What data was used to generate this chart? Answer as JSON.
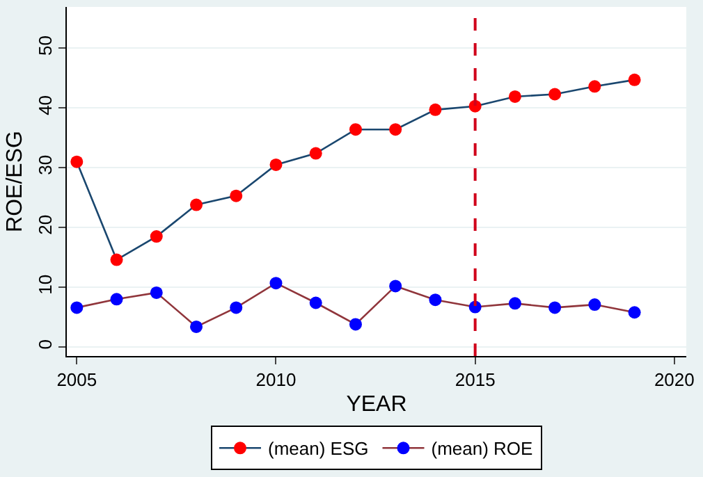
{
  "chart_data": {
    "type": "line",
    "xlabel": "YEAR",
    "ylabel": "ROE/ESG",
    "x": [
      2005,
      2006,
      2007,
      2008,
      2009,
      2010,
      2011,
      2012,
      2013,
      2014,
      2015,
      2016,
      2017,
      2018,
      2019
    ],
    "series": [
      {
        "name": "(mean) ESG",
        "color": "#1a476f",
        "colors": [
          "#ff0000",
          "#ff0000",
          "#ff0000",
          "#ff0000",
          "#ff0000",
          "#ff0000",
          "#ff0000",
          "#ff0000",
          "#ff0000",
          "#ff0000",
          "#ff0000",
          "#ff0000",
          "#ff0000",
          "#ff0000",
          "#ff0000"
        ],
        "values": [
          31.0,
          14.6,
          18.5,
          23.8,
          25.3,
          30.5,
          32.4,
          36.4,
          36.4,
          39.7,
          40.3,
          41.9,
          42.3,
          43.6,
          44.7
        ]
      },
      {
        "name": "(mean) ROE",
        "color": "#90353b",
        "colors": [
          "#0000ff",
          "#0000ff",
          "#0000ff",
          "#0000ff",
          "#0000ff",
          "#0000ff",
          "#0000ff",
          "#0000ff",
          "#0000ff",
          "#0000ff",
          "#0000ff",
          "#0000ff",
          "#0000ff",
          "#0000ff",
          "#0000ff"
        ],
        "values": [
          6.6,
          8.0,
          9.1,
          3.4,
          6.6,
          10.7,
          7.4,
          3.8,
          10.2,
          7.9,
          6.7,
          7.3,
          6.6,
          7.1,
          5.8
        ]
      }
    ],
    "xlim": [
      2004.75,
      2020.3
    ],
    "xticks": [
      2005,
      2010,
      2015,
      2020
    ],
    "ylim": [
      -1.5,
      56.9
    ],
    "yticks": [
      0,
      10,
      20,
      30,
      40,
      50
    ],
    "ref_lines": [
      {
        "axis": "x",
        "value": 2015,
        "color": "#d0021b",
        "line_style": "dashed"
      }
    ],
    "grid": "y",
    "legend": "bottom",
    "marker": "circle",
    "line_style": "solid"
  }
}
